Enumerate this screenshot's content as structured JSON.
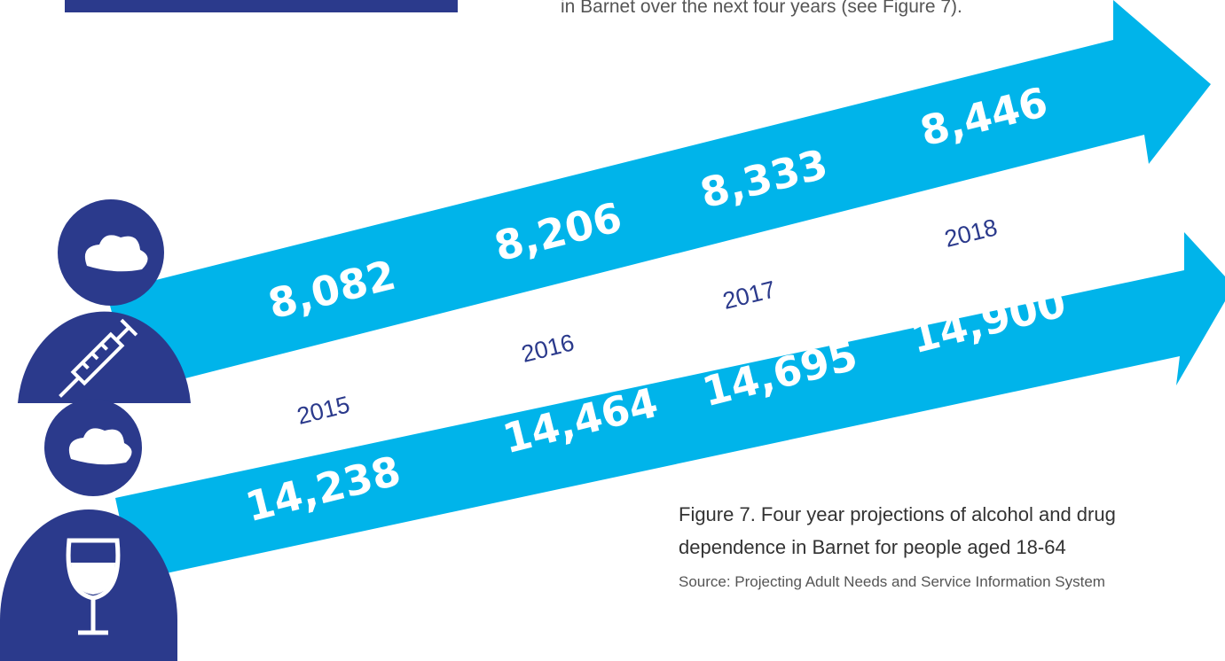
{
  "header": {
    "text": "in Barnet over the next four years (see Figure 7)."
  },
  "years": [
    "2015",
    "2016",
    "2017",
    "2018"
  ],
  "drug": {
    "values": [
      "8,082",
      "8,206",
      "8,333",
      "8,446"
    ]
  },
  "alcohol": {
    "values": [
      "14,238",
      "14,464",
      "14,695",
      "14,900"
    ]
  },
  "caption": {
    "line1": "Figure 7.  Four year projections of alcohol and drug",
    "line2": "dependence in Barnet for people aged 18-64",
    "source": "Source: Projecting Adult Needs and Service Information System"
  }
}
